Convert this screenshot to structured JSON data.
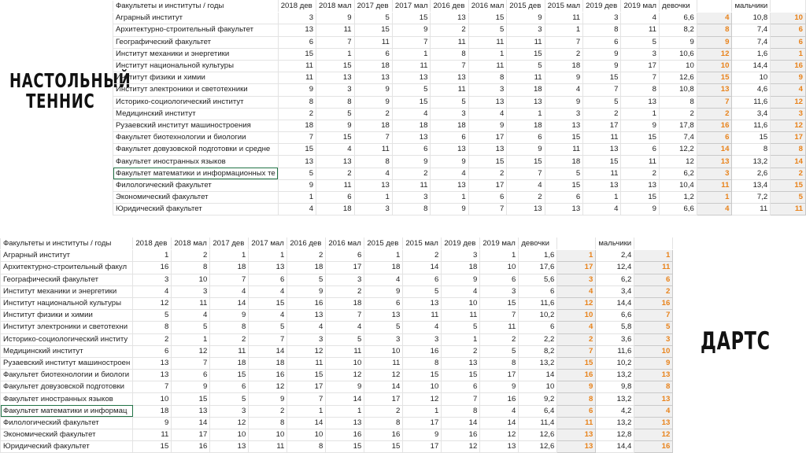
{
  "accent_color": "#e8821a",
  "selection_color": "#217346",
  "tennis": {
    "label_line1": "НАСТОЛЬНЫЙ",
    "label_line2": "ТЕННИС",
    "headers": [
      "Факультеты и институты / годы",
      "2018 дев",
      "2018 мал",
      "2017 дев",
      "2017 мал",
      "2016 дев",
      "2016 мал",
      "2015 дев",
      "2015 мал",
      "2019 дев",
      "2019 мал",
      "девочки",
      "",
      "мальчики",
      ""
    ],
    "rows": [
      [
        "Аграрный институт",
        "3",
        "9",
        "5",
        "15",
        "13",
        "15",
        "9",
        "11",
        "3",
        "4",
        "6,6",
        "4",
        "10,8",
        "10"
      ],
      [
        "Архитектурно-строительный факультет",
        "13",
        "11",
        "15",
        "9",
        "2",
        "5",
        "3",
        "1",
        "8",
        "11",
        "8,2",
        "8",
        "7,4",
        "6"
      ],
      [
        "Географический факультет",
        "6",
        "7",
        "11",
        "7",
        "11",
        "11",
        "11",
        "7",
        "6",
        "5",
        "9",
        "9",
        "7,4",
        "6"
      ],
      [
        "Институт механики и энергетики",
        "15",
        "1",
        "6",
        "1",
        "8",
        "1",
        "15",
        "2",
        "9",
        "3",
        "10,6",
        "12",
        "1,6",
        "1"
      ],
      [
        "Институт национальной культуры",
        "11",
        "15",
        "18",
        "11",
        "7",
        "11",
        "5",
        "18",
        "9",
        "17",
        "10",
        "10",
        "14,4",
        "16"
      ],
      [
        "Институт физики и химии",
        "11",
        "13",
        "13",
        "13",
        "13",
        "8",
        "11",
        "9",
        "15",
        "7",
        "12,6",
        "15",
        "10",
        "9"
      ],
      [
        "Институт электроники и светотехники",
        "9",
        "3",
        "9",
        "5",
        "11",
        "3",
        "18",
        "4",
        "7",
        "8",
        "10,8",
        "13",
        "4,6",
        "4"
      ],
      [
        "Историко-социологический институт",
        "8",
        "8",
        "9",
        "15",
        "5",
        "13",
        "13",
        "9",
        "5",
        "13",
        "8",
        "7",
        "11,6",
        "12"
      ],
      [
        "Медицинский институт",
        "2",
        "5",
        "2",
        "4",
        "3",
        "4",
        "1",
        "3",
        "2",
        "1",
        "2",
        "2",
        "3,4",
        "3"
      ],
      [
        "Рузаевский институт машиностроения",
        "18",
        "9",
        "18",
        "18",
        "18",
        "9",
        "18",
        "13",
        "17",
        "9",
        "17,8",
        "16",
        "11,6",
        "12"
      ],
      [
        "Факультет биотехнологии и биологии",
        "7",
        "15",
        "7",
        "13",
        "6",
        "17",
        "6",
        "15",
        "11",
        "15",
        "7,4",
        "6",
        "15",
        "17"
      ],
      [
        "Факультет довузовской подготовки и средне",
        "15",
        "4",
        "11",
        "6",
        "13",
        "13",
        "9",
        "11",
        "13",
        "6",
        "12,2",
        "14",
        "8",
        "8"
      ],
      [
        "Факультет иностранных языков",
        "13",
        "13",
        "8",
        "9",
        "9",
        "15",
        "15",
        "18",
        "15",
        "11",
        "12",
        "13",
        "13,2",
        "14"
      ],
      [
        "Факультет математики и информационных те",
        "5",
        "2",
        "4",
        "2",
        "4",
        "2",
        "7",
        "5",
        "11",
        "2",
        "6,2",
        "3",
        "2,6",
        "2"
      ],
      [
        "Филологический факультет",
        "9",
        "11",
        "13",
        "11",
        "13",
        "17",
        "4",
        "15",
        "13",
        "13",
        "10,4",
        "11",
        "13,4",
        "15"
      ],
      [
        "Экономический факультет",
        "1",
        "6",
        "1",
        "3",
        "1",
        "6",
        "2",
        "6",
        "1",
        "15",
        "1,2",
        "1",
        "7,2",
        "5"
      ],
      [
        "Юридический факультет",
        "4",
        "18",
        "3",
        "8",
        "9",
        "7",
        "13",
        "13",
        "4",
        "9",
        "6,6",
        "4",
        "11",
        "11"
      ]
    ]
  },
  "darts": {
    "label": "ДАРТС",
    "headers": [
      "Факультеты и институты / годы",
      "2018 дев",
      "2018 мал",
      "2017 дев",
      "2017 мал",
      "2016 дев",
      "2016 мал",
      "2015 дев",
      "2015 мал",
      "2019 дев",
      "2019 мал",
      "девочки",
      "",
      "мальчики",
      ""
    ],
    "rows": [
      [
        "Аграрный институт",
        "1",
        "2",
        "1",
        "1",
        "2",
        "6",
        "1",
        "2",
        "3",
        "1",
        "1,6",
        "1",
        "2,4",
        "1"
      ],
      [
        "Архитектурно-строительный факул",
        "16",
        "8",
        "18",
        "13",
        "18",
        "17",
        "18",
        "14",
        "18",
        "10",
        "17,6",
        "17",
        "12,4",
        "11"
      ],
      [
        "Географический факультет",
        "3",
        "10",
        "7",
        "6",
        "5",
        "3",
        "4",
        "6",
        "9",
        "6",
        "5,6",
        "3",
        "6,2",
        "6"
      ],
      [
        "Институт механики и энергетики",
        "4",
        "3",
        "4",
        "4",
        "9",
        "2",
        "9",
        "5",
        "4",
        "3",
        "6",
        "4",
        "3,4",
        "2"
      ],
      [
        "Институт национальной культуры",
        "12",
        "11",
        "14",
        "15",
        "16",
        "18",
        "6",
        "13",
        "10",
        "15",
        "11,6",
        "12",
        "14,4",
        "16"
      ],
      [
        "Институт физики и химии",
        "5",
        "4",
        "9",
        "4",
        "13",
        "7",
        "13",
        "11",
        "11",
        "7",
        "10,2",
        "10",
        "6,6",
        "7"
      ],
      [
        "Институт электроники и светотехни",
        "8",
        "5",
        "8",
        "5",
        "4",
        "4",
        "5",
        "4",
        "5",
        "11",
        "6",
        "4",
        "5,8",
        "5"
      ],
      [
        "Историко-социологический институ",
        "2",
        "1",
        "2",
        "7",
        "3",
        "5",
        "3",
        "3",
        "1",
        "2",
        "2,2",
        "2",
        "3,6",
        "3"
      ],
      [
        "Медицинский институт",
        "6",
        "12",
        "11",
        "14",
        "12",
        "11",
        "10",
        "16",
        "2",
        "5",
        "8,2",
        "7",
        "11,6",
        "10"
      ],
      [
        "Рузаевский институт машиностроен",
        "13",
        "7",
        "18",
        "18",
        "11",
        "10",
        "11",
        "8",
        "13",
        "8",
        "13,2",
        "15",
        "10,2",
        "9"
      ],
      [
        "Факультет биотехнологии и биологи",
        "13",
        "6",
        "15",
        "16",
        "15",
        "12",
        "12",
        "15",
        "15",
        "17",
        "14",
        "16",
        "13,2",
        "13"
      ],
      [
        "Факультет довузовской подготовки",
        "7",
        "9",
        "6",
        "12",
        "17",
        "9",
        "14",
        "10",
        "6",
        "9",
        "10",
        "9",
        "9,8",
        "8"
      ],
      [
        "Факультет иностранных языков",
        "10",
        "15",
        "5",
        "9",
        "7",
        "14",
        "17",
        "12",
        "7",
        "16",
        "9,2",
        "8",
        "13,2",
        "13"
      ],
      [
        "Факультет математики и информац",
        "18",
        "13",
        "3",
        "2",
        "1",
        "1",
        "2",
        "1",
        "8",
        "4",
        "6,4",
        "6",
        "4,2",
        "4"
      ],
      [
        "Филологический факультет",
        "9",
        "14",
        "12",
        "8",
        "14",
        "13",
        "8",
        "17",
        "14",
        "14",
        "11,4",
        "11",
        "13,2",
        "13"
      ],
      [
        "Экономический факультет",
        "11",
        "17",
        "10",
        "10",
        "10",
        "16",
        "16",
        "9",
        "16",
        "12",
        "12,6",
        "13",
        "12,8",
        "12"
      ],
      [
        "Юридический факультет",
        "15",
        "16",
        "13",
        "11",
        "8",
        "15",
        "15",
        "17",
        "12",
        "13",
        "12,6",
        "13",
        "14,4",
        "16"
      ]
    ]
  }
}
